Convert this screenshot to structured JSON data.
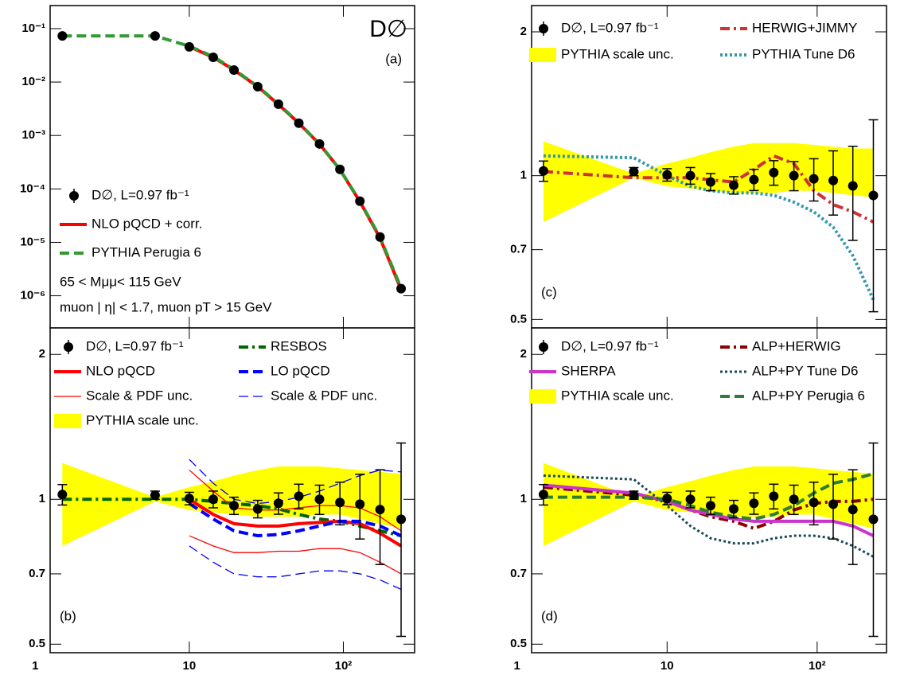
{
  "chart_data": [
    {
      "type": "line",
      "panel_label": "(a)",
      "experiment": "D∅",
      "log_x": true,
      "log_y": true,
      "xlim": [
        1.25,
        290
      ],
      "ylim": [
        2.5e-07,
        0.27
      ],
      "xticks": [
        10,
        100
      ],
      "xtick_labels": false,
      "yticks": [
        {
          "value": 1e-06,
          "label": "10⁻⁶"
        },
        {
          "value": 1e-05,
          "label": "10⁻⁵"
        },
        {
          "value": 0.0001,
          "label": "10⁻⁴"
        },
        {
          "value": 0.001,
          "label": "10⁻³"
        },
        {
          "value": 0.01,
          "label": "10⁻²"
        },
        {
          "value": 0.1,
          "label": "10⁻¹"
        }
      ],
      "x": [
        1.5,
        6,
        10,
        14.3,
        19.5,
        27.8,
        37.9,
        51.4,
        70,
        95,
        128,
        173,
        237
      ],
      "data": {
        "name": "D∅, L=0.97 fb⁻¹",
        "color": "#000000",
        "values": [
          0.073,
          0.073,
          0.0455,
          0.029,
          0.0168,
          0.0082,
          0.00386,
          0.0017,
          0.000695,
          0.000232,
          5.9e-05,
          1.26e-05,
          1.36e-06
        ]
      },
      "series": [
        {
          "name": "NLO pQCD + corr.",
          "color": "#ff0000",
          "dash": "solid",
          "width": 4,
          "values": [
            null,
            null,
            0.046,
            0.029,
            0.0168,
            0.0082,
            0.0038,
            0.0017,
            0.00069,
            0.00023,
            5.8e-05,
            1.2e-05,
            1.3e-06
          ]
        },
        {
          "name": "PYTHIA Perugia 6",
          "color": "#339933",
          "dash": "dashed",
          "width": 4,
          "values": [
            0.073,
            0.073,
            0.047,
            0.03,
            0.0172,
            0.0083,
            0.0039,
            0.00172,
            0.0007,
            0.00023,
            5.9e-05,
            1.25e-05,
            1.4e-06
          ]
        }
      ],
      "annotations": [
        "65 < Mμμ< 115 GeV",
        "muon | η| < 1.7, muon pT > 15 GeV"
      ]
    },
    {
      "type": "line",
      "panel_label": "(b)",
      "log_x": true,
      "log_y": true,
      "xlim": [
        1.25,
        290
      ],
      "ylim": [
        0.48,
        2.27
      ],
      "xticks": [
        1,
        10,
        {
          "value": 100,
          "label": "10²"
        }
      ],
      "xtick_labels": true,
      "yticks": [
        0.5,
        0.7,
        1,
        2
      ],
      "x": [
        1.5,
        6,
        10,
        14.3,
        19.5,
        27.8,
        37.9,
        51.4,
        70,
        95,
        128,
        173,
        237
      ],
      "data": {
        "name": "D∅, L=0.97 fb⁻¹",
        "color": "#000000",
        "values": [
          1.023,
          1.02,
          1.004,
          1.0,
          0.97,
          0.955,
          0.981,
          1.015,
          1.0,
          0.985,
          0.977,
          0.952,
          0.909
        ],
        "errors_up": [
          0.05,
          0.02,
          0.03,
          0.04,
          0.04,
          0.04,
          0.05,
          0.06,
          0.07,
          0.1,
          0.15,
          0.2,
          0.4
        ],
        "errors_down": [
          0.05,
          0.02,
          0.03,
          0.04,
          0.04,
          0.04,
          0.05,
          0.06,
          0.07,
          0.1,
          0.15,
          0.22,
          0.39
        ]
      },
      "band": {
        "name": "PYTHIA scale unc.",
        "color": "#ffff00",
        "upper": [
          1.19,
          1.01,
          1.06,
          1.09,
          1.12,
          1.15,
          1.17,
          1.17,
          1.17,
          1.16,
          1.15,
          1.14,
          1.13
        ],
        "lower": [
          0.8,
          0.99,
          0.95,
          0.94,
          0.93,
          0.92,
          0.92,
          0.92,
          0.93,
          0.93,
          0.91,
          0.89,
          0.87
        ]
      },
      "series": [
        {
          "name": "RESBOS",
          "color": "#006600",
          "dash": "dashdot",
          "width": 4,
          "values": [
            1.0,
            1.0,
            1.0,
            0.99,
            0.98,
            0.97,
            0.955,
            0.93,
            0.91,
            0.9,
            0.88,
            0.86,
            0.84
          ]
        },
        {
          "name": "NLO pQCD",
          "color": "#ff0000",
          "dash": "solid",
          "width": 4,
          "values": [
            null,
            null,
            1.0,
            0.93,
            0.89,
            0.88,
            0.88,
            0.89,
            0.895,
            0.9,
            0.89,
            0.85,
            0.8
          ]
        },
        {
          "name": "Scale & PDF unc.",
          "color": "#ff0000",
          "dash": "solid",
          "width": 1.3,
          "upper": [
            null,
            null,
            1.15,
            1.04,
            0.96,
            0.95,
            0.95,
            0.96,
            0.97,
            0.97,
            0.96,
            0.92,
            0.86
          ],
          "lower": [
            null,
            null,
            0.84,
            0.8,
            0.775,
            0.775,
            0.78,
            0.78,
            0.79,
            0.79,
            0.775,
            0.74,
            0.7
          ]
        },
        {
          "name": "LO pQCD",
          "color": "#0000ff",
          "dash": "dashed",
          "width": 4,
          "values": [
            null,
            null,
            0.98,
            0.91,
            0.86,
            0.84,
            0.845,
            0.86,
            0.88,
            0.9,
            0.9,
            0.88,
            0.84
          ]
        },
        {
          "name": "Scale & PDF unc.",
          "color": "#0000ff",
          "dash": "dashed",
          "width": 1.3,
          "upper": [
            null,
            null,
            1.21,
            1.08,
            1.0,
            0.98,
            0.99,
            1.01,
            1.04,
            1.08,
            1.12,
            1.15,
            1.14
          ],
          "lower": [
            null,
            null,
            0.8,
            0.74,
            0.7,
            0.69,
            0.69,
            0.7,
            0.71,
            0.71,
            0.7,
            0.68,
            0.65
          ]
        }
      ]
    },
    {
      "type": "line",
      "panel_label": "(c)",
      "log_x": true,
      "log_y": true,
      "xlim": [
        1.25,
        290
      ],
      "ylim": [
        0.48,
        2.27
      ],
      "xticks": [
        10,
        100
      ],
      "xtick_labels": false,
      "yticks": [
        0.5,
        0.7,
        1,
        2
      ],
      "x": [
        1.5,
        6,
        10,
        14.3,
        19.5,
        27.8,
        37.9,
        51.4,
        70,
        95,
        128,
        173,
        237
      ],
      "data": {
        "name": "D∅, L=0.97 fb⁻¹",
        "color": "#000000",
        "values": [
          1.023,
          1.02,
          1.004,
          1.0,
          0.97,
          0.955,
          0.981,
          1.015,
          1.0,
          0.985,
          0.977,
          0.952,
          0.909
        ],
        "errors_up": [
          0.05,
          0.02,
          0.03,
          0.04,
          0.04,
          0.04,
          0.05,
          0.06,
          0.07,
          0.1,
          0.15,
          0.2,
          0.4
        ],
        "errors_down": [
          0.05,
          0.02,
          0.03,
          0.04,
          0.04,
          0.04,
          0.05,
          0.06,
          0.07,
          0.1,
          0.15,
          0.22,
          0.39
        ]
      },
      "band": {
        "name": "PYTHIA scale unc.",
        "color": "#ffff00",
        "upper": [
          1.18,
          1.01,
          1.06,
          1.09,
          1.12,
          1.15,
          1.17,
          1.17,
          1.17,
          1.16,
          1.15,
          1.14,
          1.14
        ],
        "lower": [
          0.8,
          0.99,
          0.95,
          0.94,
          0.93,
          0.92,
          0.92,
          0.92,
          0.93,
          0.93,
          0.92,
          0.91,
          0.9
        ]
      },
      "series": [
        {
          "name": "HERWIG+JIMMY",
          "color": "#cc3333",
          "dash": "dashdot",
          "width": 4,
          "values": [
            1.02,
            0.99,
            0.99,
            0.99,
            0.98,
            0.97,
            1.03,
            1.1,
            1.06,
            0.93,
            0.87,
            0.84,
            0.8
          ]
        },
        {
          "name": "PYTHIA Tune D6",
          "color": "#3399aa",
          "dash": "dotted",
          "width": 4,
          "values": [
            1.1,
            1.09,
            1.0,
            0.95,
            0.93,
            0.92,
            0.92,
            0.91,
            0.88,
            0.84,
            0.78,
            0.68,
            0.55
          ]
        }
      ]
    },
    {
      "type": "line",
      "panel_label": "(d)",
      "log_x": true,
      "log_y": true,
      "xlim": [
        1.25,
        290
      ],
      "ylim": [
        0.48,
        2.27
      ],
      "xticks": [
        1,
        10,
        {
          "value": 100,
          "label": "10²"
        }
      ],
      "xtick_labels": true,
      "yticks": [
        0.5,
        0.7,
        1,
        2
      ],
      "x": [
        1.5,
        6,
        10,
        14.3,
        19.5,
        27.8,
        37.9,
        51.4,
        70,
        95,
        128,
        173,
        237
      ],
      "data": {
        "name": "D∅, L=0.97 fb⁻¹",
        "color": "#000000",
        "values": [
          1.023,
          1.02,
          1.004,
          1.0,
          0.97,
          0.955,
          0.981,
          1.015,
          1.0,
          0.985,
          0.977,
          0.952,
          0.909
        ],
        "errors_up": [
          0.05,
          0.02,
          0.03,
          0.04,
          0.04,
          0.04,
          0.05,
          0.06,
          0.07,
          0.1,
          0.15,
          0.2,
          0.4
        ],
        "errors_down": [
          0.05,
          0.02,
          0.03,
          0.04,
          0.04,
          0.04,
          0.05,
          0.06,
          0.07,
          0.1,
          0.15,
          0.22,
          0.39
        ]
      },
      "band": {
        "name": "PYTHIA scale unc.",
        "color": "#ffff00",
        "upper": [
          1.19,
          1.01,
          1.06,
          1.09,
          1.12,
          1.15,
          1.17,
          1.17,
          1.17,
          1.16,
          1.15,
          1.14,
          1.13
        ],
        "lower": [
          0.8,
          0.99,
          0.95,
          0.94,
          0.93,
          0.92,
          0.92,
          0.92,
          0.93,
          0.93,
          0.91,
          0.89,
          0.87
        ]
      },
      "series": [
        {
          "name": "ALP+HERWIG",
          "color": "#8b0000",
          "dash": "dashdot",
          "width": 4,
          "values": [
            1.06,
            1.02,
            0.99,
            0.95,
            0.92,
            0.9,
            0.87,
            0.9,
            0.95,
            0.98,
            0.99,
            0.99,
            1.0
          ]
        },
        {
          "name": "SHERPA",
          "color": "#cc33cc",
          "dash": "solid",
          "width": 4,
          "values": [
            1.07,
            1.03,
            0.99,
            0.95,
            0.93,
            0.91,
            0.9,
            0.9,
            0.9,
            0.9,
            0.9,
            0.88,
            0.84
          ]
        },
        {
          "name": "ALP+PY Tune D6",
          "color": "#1a4a5a",
          "dash": "dotted",
          "width": 3,
          "values": [
            1.12,
            1.1,
            0.97,
            0.88,
            0.83,
            0.81,
            0.81,
            0.83,
            0.84,
            0.84,
            0.83,
            0.8,
            0.76
          ]
        },
        {
          "name": "ALP+PY Perugia 6",
          "color": "#2e7d32",
          "dash": "dashed",
          "width": 4,
          "values": [
            1.01,
            1.01,
            1.0,
            0.97,
            0.94,
            0.92,
            0.91,
            0.93,
            0.97,
            1.03,
            1.08,
            1.1,
            1.13
          ]
        }
      ]
    }
  ]
}
